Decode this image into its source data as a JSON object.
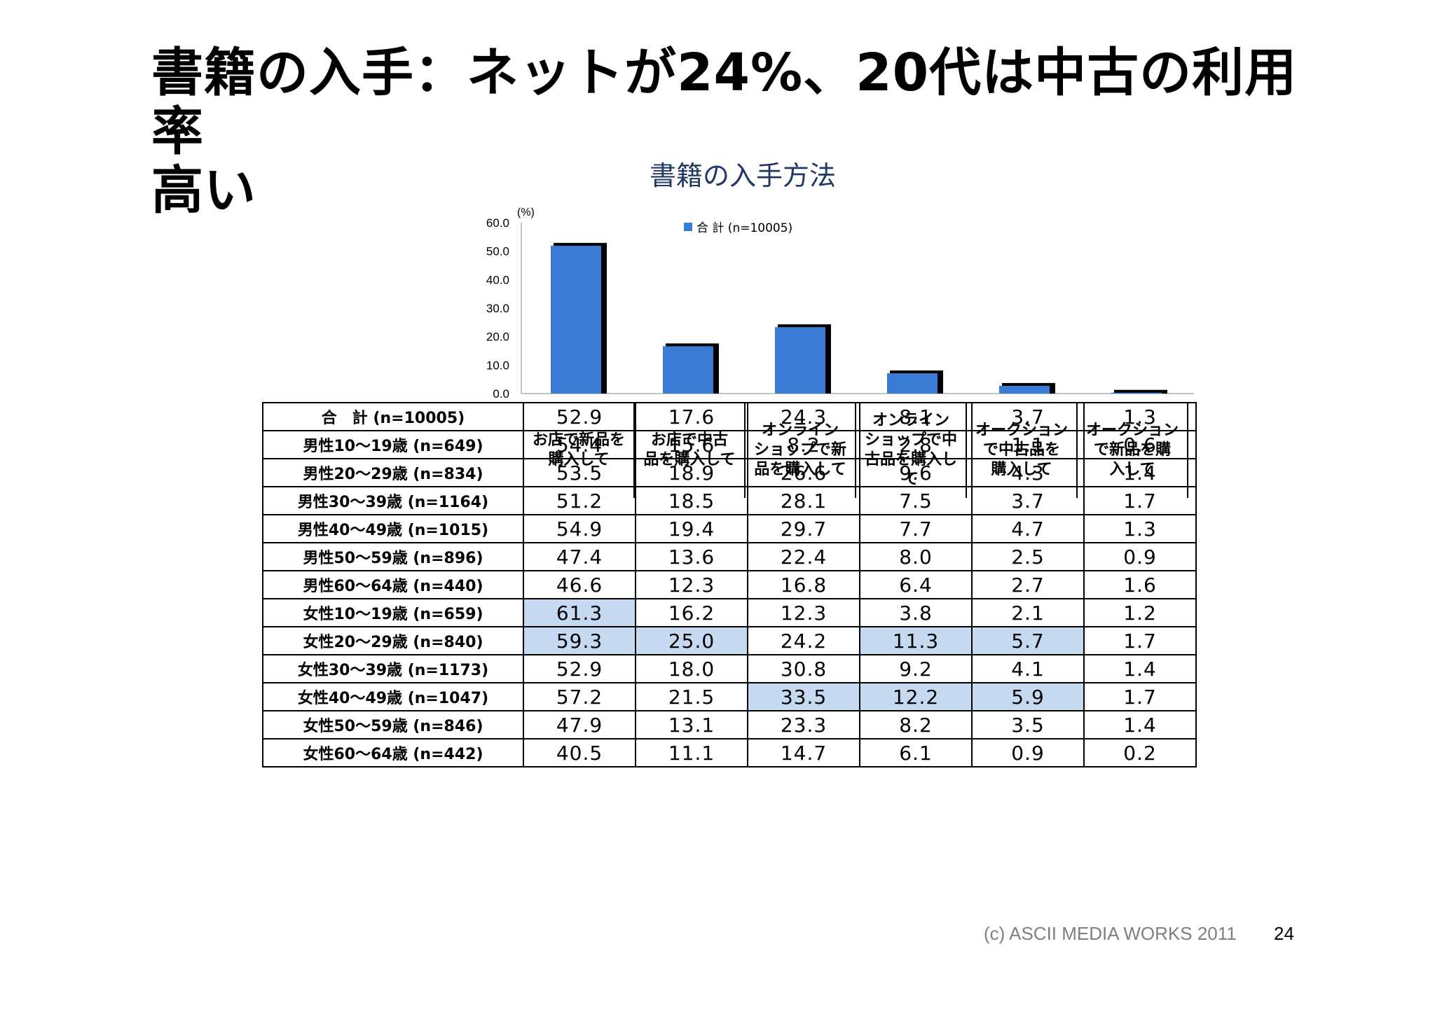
{
  "slide": {
    "title_line1": "書籍の入手：ネットが24%、20代は中古の利用率",
    "title_line2": "高い",
    "footer": "(c) ASCII MEDIA WORKS 2011",
    "page_number": "24"
  },
  "chart_data": {
    "type": "bar",
    "title": "書籍の入手方法",
    "unit_label": "(%)",
    "ylim": [
      0,
      60
    ],
    "yticks": [
      "60.0",
      "50.0",
      "40.0",
      "30.0",
      "20.0",
      "10.0",
      "0.0"
    ],
    "legend_placement": "top-center",
    "bar_color": "#3a7bd5",
    "categories": [
      [
        "お店で新品を",
        "購入して"
      ],
      [
        "お店で中古",
        "品を購入して"
      ],
      [
        "オンライン",
        "ショップで新",
        "品を購入して"
      ],
      [
        "オンライン",
        "ショップで中",
        "古品を購入し",
        "て"
      ],
      [
        "オークション",
        "で中古品を",
        "購入して"
      ],
      [
        "オークション",
        "で新品を購",
        "入して"
      ]
    ],
    "series": [
      {
        "name": "合 計 (n=10005)",
        "values": [
          52.9,
          17.6,
          24.3,
          8.1,
          3.7,
          1.3
        ]
      }
    ]
  },
  "table": {
    "highlight_color": "#c5d9f1",
    "rows": [
      {
        "label": "合　計 (n=10005)",
        "values": [
          "52.9",
          "17.6",
          "24.3",
          "8.1",
          "3.7",
          "1.3"
        ],
        "highlight": []
      },
      {
        "label": "男性10～19歳 (n=649)",
        "values": [
          "54.4",
          "15.6",
          "8.2",
          "2.8",
          "1.1",
          "0.6"
        ],
        "highlight": []
      },
      {
        "label": "男性20～29歳 (n=834)",
        "values": [
          "53.5",
          "18.9",
          "26.6",
          "9.6",
          "4.3",
          "1.4"
        ],
        "highlight": []
      },
      {
        "label": "男性30～39歳 (n=1164)",
        "values": [
          "51.2",
          "18.5",
          "28.1",
          "7.5",
          "3.7",
          "1.7"
        ],
        "highlight": []
      },
      {
        "label": "男性40～49歳 (n=1015)",
        "values": [
          "54.9",
          "19.4",
          "29.7",
          "7.7",
          "4.7",
          "1.3"
        ],
        "highlight": []
      },
      {
        "label": "男性50～59歳 (n=896)",
        "values": [
          "47.4",
          "13.6",
          "22.4",
          "8.0",
          "2.5",
          "0.9"
        ],
        "highlight": []
      },
      {
        "label": "男性60～64歳 (n=440)",
        "values": [
          "46.6",
          "12.3",
          "16.8",
          "6.4",
          "2.7",
          "1.6"
        ],
        "highlight": []
      },
      {
        "label": "女性10～19歳 (n=659)",
        "values": [
          "61.3",
          "16.2",
          "12.3",
          "3.8",
          "2.1",
          "1.2"
        ],
        "highlight": [
          0
        ]
      },
      {
        "label": "女性20～29歳 (n=840)",
        "values": [
          "59.3",
          "25.0",
          "24.2",
          "11.3",
          "5.7",
          "1.7"
        ],
        "highlight": [
          0,
          1,
          3,
          4
        ]
      },
      {
        "label": "女性30～39歳 (n=1173)",
        "values": [
          "52.9",
          "18.0",
          "30.8",
          "9.2",
          "4.1",
          "1.4"
        ],
        "highlight": []
      },
      {
        "label": "女性40～49歳 (n=1047)",
        "values": [
          "57.2",
          "21.5",
          "33.5",
          "12.2",
          "5.9",
          "1.7"
        ],
        "highlight": [
          2,
          3,
          4
        ]
      },
      {
        "label": "女性50～59歳 (n=846)",
        "values": [
          "47.9",
          "13.1",
          "23.3",
          "8.2",
          "3.5",
          "1.4"
        ],
        "highlight": []
      },
      {
        "label": "女性60～64歳 (n=442)",
        "values": [
          "40.5",
          "11.1",
          "14.7",
          "6.1",
          "0.9",
          "0.2"
        ],
        "highlight": []
      }
    ]
  }
}
